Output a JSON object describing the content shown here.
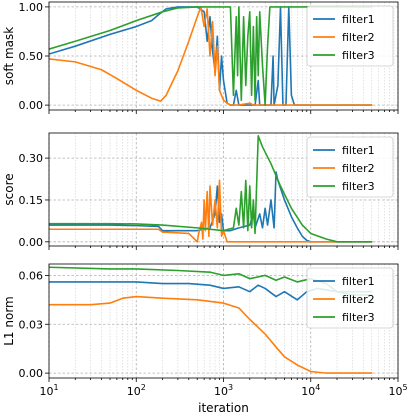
{
  "chart_data": [
    {
      "type": "line",
      "ylabel": "soft mask",
      "xlabel": "",
      "xscale": "log",
      "xlim": [
        10,
        100000
      ],
      "ylim": [
        -0.05,
        1.05
      ],
      "yticks": [
        0.0,
        0.5,
        1.0
      ],
      "ytick_labels": [
        "0.00",
        "0.50",
        "1.00"
      ],
      "grid": true,
      "legend": "top-right",
      "series": [
        {
          "name": "filter1",
          "color": "#1f77b4",
          "points": [
            [
              10,
              0.52
            ],
            [
              20,
              0.6
            ],
            [
              50,
              0.72
            ],
            [
              100,
              0.8
            ],
            [
              150,
              0.86
            ],
            [
              180,
              0.92
            ],
            [
              220,
              0.98
            ],
            [
              300,
              1.0
            ],
            [
              500,
              1.0
            ],
            [
              600,
              0.95
            ],
            [
              650,
              0.65
            ],
            [
              700,
              0.9
            ],
            [
              750,
              0.55
            ],
            [
              800,
              0.35
            ],
            [
              850,
              0.7
            ],
            [
              900,
              0.15
            ],
            [
              950,
              0.5
            ],
            [
              1000,
              0.25
            ],
            [
              1100,
              0.02
            ],
            [
              1200,
              0.0
            ],
            [
              1300,
              0.0
            ],
            [
              1400,
              0.15
            ],
            [
              1500,
              0.0
            ],
            [
              1800,
              0.0
            ],
            [
              2300,
              0.0
            ],
            [
              2500,
              0.25
            ],
            [
              2600,
              0.0
            ],
            [
              3000,
              0.0
            ],
            [
              3500,
              0.0
            ],
            [
              3700,
              0.5
            ],
            [
              3800,
              0.0
            ],
            [
              4200,
              0.2
            ],
            [
              4500,
              1.0
            ],
            [
              4800,
              0.0
            ],
            [
              5200,
              0.0
            ],
            [
              5600,
              1.0
            ],
            [
              6000,
              0.1
            ],
            [
              6500,
              0.0
            ],
            [
              7000,
              0.0
            ],
            [
              50000,
              0.0
            ]
          ]
        },
        {
          "name": "filter2",
          "color": "#ff7f0e",
          "points": [
            [
              10,
              0.47
            ],
            [
              20,
              0.44
            ],
            [
              40,
              0.36
            ],
            [
              60,
              0.27
            ],
            [
              100,
              0.15
            ],
            [
              150,
              0.07
            ],
            [
              190,
              0.04
            ],
            [
              220,
              0.1
            ],
            [
              300,
              0.35
            ],
            [
              400,
              0.65
            ],
            [
              500,
              0.9
            ],
            [
              550,
              1.0
            ],
            [
              600,
              0.8
            ],
            [
              650,
              0.98
            ],
            [
              700,
              0.5
            ],
            [
              750,
              0.85
            ],
            [
              800,
              0.3
            ],
            [
              850,
              0.6
            ],
            [
              900,
              0.15
            ],
            [
              1000,
              0.05
            ],
            [
              1100,
              0.02
            ],
            [
              1200,
              0.0
            ],
            [
              1500,
              0.0
            ],
            [
              2000,
              0.02
            ],
            [
              2200,
              0.0
            ],
            [
              3000,
              0.0
            ],
            [
              50000,
              0.0
            ]
          ]
        },
        {
          "name": "filter3",
          "color": "#2ca02c",
          "points": [
            [
              10,
              0.57
            ],
            [
              20,
              0.65
            ],
            [
              50,
              0.76
            ],
            [
              100,
              0.86
            ],
            [
              200,
              0.95
            ],
            [
              300,
              0.99
            ],
            [
              500,
              1.0
            ],
            [
              1000,
              1.0
            ],
            [
              1200,
              1.0
            ],
            [
              1300,
              0.1
            ],
            [
              1400,
              0.9
            ],
            [
              1450,
              0.3
            ],
            [
              1500,
              1.0
            ],
            [
              1550,
              0.5
            ],
            [
              1600,
              0.05
            ],
            [
              1700,
              0.9
            ],
            [
              1800,
              0.2
            ],
            [
              1900,
              0.7
            ],
            [
              2000,
              0.95
            ],
            [
              2100,
              0.1
            ],
            [
              2200,
              0.8
            ],
            [
              2300,
              0.05
            ],
            [
              2400,
              0.9
            ],
            [
              2500,
              0.3
            ],
            [
              2600,
              0.95
            ],
            [
              2800,
              0.4
            ],
            [
              3000,
              0.0
            ],
            [
              3200,
              0.6
            ],
            [
              3400,
              1.0
            ],
            [
              3500,
              1.0
            ],
            [
              50000,
              1.0
            ]
          ]
        }
      ]
    },
    {
      "type": "line",
      "ylabel": "score",
      "xlabel": "",
      "xscale": "log",
      "xlim": [
        10,
        100000
      ],
      "ylim": [
        -0.015,
        0.39
      ],
      "yticks": [
        0.0,
        0.15,
        0.3
      ],
      "ytick_labels": [
        "0.00",
        "0.15",
        "0.30"
      ],
      "grid": true,
      "legend": "top-right",
      "series": [
        {
          "name": "filter1",
          "color": "#1f77b4",
          "points": [
            [
              10,
              0.06
            ],
            [
              50,
              0.06
            ],
            [
              100,
              0.058
            ],
            [
              180,
              0.055
            ],
            [
              200,
              0.04
            ],
            [
              500,
              0.04
            ],
            [
              700,
              0.05
            ],
            [
              800,
              0.1
            ],
            [
              850,
              0.2
            ],
            [
              900,
              0.07
            ],
            [
              950,
              0.1
            ],
            [
              1000,
              0.04
            ],
            [
              1200,
              0.04
            ],
            [
              1500,
              0.05
            ],
            [
              2000,
              0.06
            ],
            [
              2200,
              0.1
            ],
            [
              2300,
              0.05
            ],
            [
              2600,
              0.1
            ],
            [
              2800,
              0.05
            ],
            [
              3000,
              0.12
            ],
            [
              3200,
              0.06
            ],
            [
              3500,
              0.15
            ],
            [
              3800,
              0.05
            ],
            [
              4000,
              0.25
            ],
            [
              4200,
              0.22
            ],
            [
              5000,
              0.15
            ],
            [
              6000,
              0.09
            ],
            [
              7000,
              0.05
            ],
            [
              8000,
              0.02
            ],
            [
              9000,
              0.005
            ],
            [
              10000,
              0.0
            ],
            [
              50000,
              0.0
            ]
          ]
        },
        {
          "name": "filter2",
          "color": "#ff7f0e",
          "points": [
            [
              10,
              0.045
            ],
            [
              100,
              0.045
            ],
            [
              180,
              0.045
            ],
            [
              200,
              0.035
            ],
            [
              400,
              0.03
            ],
            [
              500,
              0.0
            ],
            [
              520,
              0.03
            ],
            [
              560,
              0.07
            ],
            [
              580,
              0.01
            ],
            [
              600,
              0.15
            ],
            [
              620,
              0.04
            ],
            [
              650,
              0.18
            ],
            [
              680,
              0.02
            ],
            [
              700,
              0.2
            ],
            [
              750,
              0.06
            ],
            [
              800,
              0.15
            ],
            [
              850,
              0.05
            ],
            [
              900,
              0.22
            ],
            [
              950,
              0.02
            ],
            [
              1000,
              0.04
            ],
            [
              1100,
              0.0
            ],
            [
              1300,
              0.0
            ],
            [
              2000,
              0.0
            ],
            [
              50000,
              0.0
            ]
          ]
        },
        {
          "name": "filter3",
          "color": "#2ca02c",
          "points": [
            [
              10,
              0.065
            ],
            [
              50,
              0.065
            ],
            [
              100,
              0.064
            ],
            [
              200,
              0.06
            ],
            [
              500,
              0.05
            ],
            [
              1000,
              0.04
            ],
            [
              1300,
              0.05
            ],
            [
              1400,
              0.12
            ],
            [
              1500,
              0.06
            ],
            [
              1600,
              0.18
            ],
            [
              1700,
              0.05
            ],
            [
              1800,
              0.22
            ],
            [
              1900,
              0.04
            ],
            [
              2000,
              0.2
            ],
            [
              2100,
              0.05
            ],
            [
              2200,
              0.15
            ],
            [
              2300,
              0.03
            ],
            [
              2500,
              0.38
            ],
            [
              2800,
              0.34
            ],
            [
              3500,
              0.28
            ],
            [
              4500,
              0.2
            ],
            [
              6000,
              0.12
            ],
            [
              8000,
              0.06
            ],
            [
              10000,
              0.03
            ],
            [
              15000,
              0.01
            ],
            [
              20000,
              0.0
            ],
            [
              50000,
              0.0
            ]
          ]
        }
      ]
    },
    {
      "type": "line",
      "ylabel": "L1 norm",
      "xlabel": "iteration",
      "xscale": "log",
      "xlim": [
        10,
        100000
      ],
      "xticks": [
        10,
        100,
        1000,
        10000,
        100000
      ],
      "xtick_labels": [
        [
          "10",
          "1"
        ],
        [
          "10",
          "2"
        ],
        [
          "10",
          "3"
        ],
        [
          "10",
          "4"
        ],
        [
          "10",
          "5"
        ]
      ],
      "ylim": [
        -0.003,
        0.067
      ],
      "yticks": [
        0.0,
        0.03,
        0.06
      ],
      "ytick_labels": [
        "0.00",
        "0.03",
        "0.06"
      ],
      "grid": true,
      "legend": "top-right",
      "series": [
        {
          "name": "filter1",
          "color": "#1f77b4",
          "points": [
            [
              10,
              0.056
            ],
            [
              50,
              0.056
            ],
            [
              100,
              0.056
            ],
            [
              200,
              0.055
            ],
            [
              400,
              0.055
            ],
            [
              700,
              0.054
            ],
            [
              1000,
              0.052
            ],
            [
              1500,
              0.053
            ],
            [
              2000,
              0.05
            ],
            [
              2500,
              0.054
            ],
            [
              3000,
              0.052
            ],
            [
              4000,
              0.047
            ],
            [
              5000,
              0.05
            ],
            [
              7000,
              0.045
            ],
            [
              9000,
              0.05
            ],
            [
              12000,
              0.052
            ],
            [
              20000,
              0.05
            ],
            [
              50000,
              0.05
            ]
          ]
        },
        {
          "name": "filter2",
          "color": "#ff7f0e",
          "points": [
            [
              10,
              0.042
            ],
            [
              30,
              0.042
            ],
            [
              50,
              0.043
            ],
            [
              70,
              0.046
            ],
            [
              100,
              0.047
            ],
            [
              200,
              0.046
            ],
            [
              500,
              0.045
            ],
            [
              1000,
              0.043
            ],
            [
              1500,
              0.04
            ],
            [
              2000,
              0.033
            ],
            [
              3000,
              0.024
            ],
            [
              4000,
              0.016
            ],
            [
              5000,
              0.01
            ],
            [
              7000,
              0.005
            ],
            [
              10000,
              0.001
            ],
            [
              15000,
              0.0
            ],
            [
              50000,
              0.0
            ]
          ]
        },
        {
          "name": "filter3",
          "color": "#2ca02c",
          "points": [
            [
              10,
              0.065
            ],
            [
              50,
              0.064
            ],
            [
              100,
              0.064
            ],
            [
              300,
              0.063
            ],
            [
              700,
              0.062
            ],
            [
              1000,
              0.06
            ],
            [
              1500,
              0.061
            ],
            [
              2000,
              0.058
            ],
            [
              3000,
              0.06
            ],
            [
              4000,
              0.057
            ],
            [
              5000,
              0.059
            ],
            [
              7000,
              0.056
            ],
            [
              10000,
              0.058
            ],
            [
              15000,
              0.055
            ],
            [
              20000,
              0.05
            ],
            [
              30000,
              0.048
            ],
            [
              50000,
              0.048
            ]
          ]
        }
      ]
    }
  ]
}
